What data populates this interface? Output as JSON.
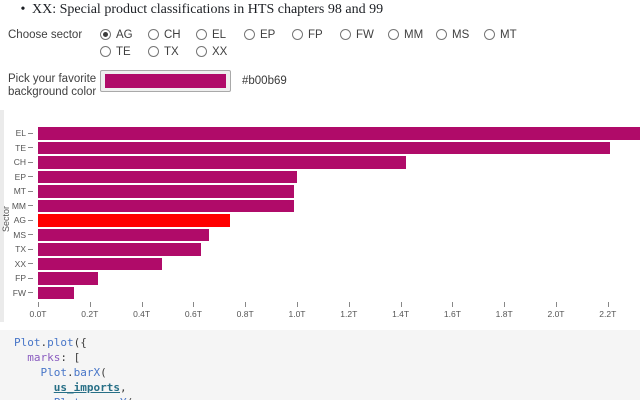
{
  "prose": {
    "bullet_text": "XX: Special product classifications in HTS chapters 98 and 99"
  },
  "sector_control": {
    "label": "Choose sector",
    "selected": "AG",
    "rows": [
      [
        "AG",
        "CH",
        "EL",
        "EP",
        "FP",
        "FW",
        "MM",
        "MS",
        "MT"
      ],
      [
        "TE",
        "TX",
        "XX"
      ]
    ]
  },
  "color_control": {
    "label_line1": "Pick your favorite",
    "label_line2": "background color",
    "value": "#b00b69"
  },
  "chart_data": {
    "type": "bar",
    "orientation": "horizontal",
    "ylabel": "Sector",
    "xlabel": "",
    "categories": [
      "EL",
      "TE",
      "CH",
      "EP",
      "MT",
      "MM",
      "AG",
      "MS",
      "TX",
      "XX",
      "FP",
      "FW"
    ],
    "values": [
      2.33,
      2.21,
      1.42,
      1.0,
      0.99,
      0.99,
      0.74,
      0.66,
      0.63,
      0.48,
      0.23,
      0.14
    ],
    "unit": "T",
    "xlim": [
      0,
      2.2
    ],
    "x_tick_values": [
      0,
      0.2,
      0.4,
      0.6,
      0.8,
      1.0,
      1.2,
      1.4,
      1.6,
      1.8,
      2.0,
      2.2
    ],
    "x_tick_labels": [
      "0.0T",
      "0.2T",
      "0.4T",
      "0.6T",
      "0.8T",
      "1.0T",
      "1.2T",
      "1.4T",
      "1.6T",
      "1.8T",
      "2.0T",
      "2.2T"
    ],
    "bar_color": "#b00b69",
    "highlight_category": "AG",
    "highlight_color": "#ff0000",
    "grid": false,
    "legend": false
  },
  "code": {
    "lines": [
      [
        {
          "t": "Plot",
          "c": "var"
        },
        {
          "t": ".",
          "c": "p"
        },
        {
          "t": "plot",
          "c": "var"
        },
        {
          "t": "({",
          "c": "p"
        }
      ],
      [
        {
          "t": "  "
        },
        {
          "t": "marks",
          "c": "prop"
        },
        {
          "t": ": [",
          "c": "p"
        }
      ],
      [
        {
          "t": "    "
        },
        {
          "t": "Plot",
          "c": "var"
        },
        {
          "t": ".",
          "c": "p"
        },
        {
          "t": "barX",
          "c": "var"
        },
        {
          "t": "(",
          "c": "p"
        }
      ],
      [
        {
          "t": "      "
        },
        {
          "t": "us_imports",
          "c": "ref"
        },
        {
          "t": ",",
          "c": "p"
        }
      ],
      [
        {
          "t": "      "
        },
        {
          "t": "Plot",
          "c": "var"
        },
        {
          "t": ".",
          "c": "p"
        },
        {
          "t": "groupY",
          "c": "var"
        },
        {
          "t": "(",
          "c": "p"
        }
      ]
    ]
  }
}
